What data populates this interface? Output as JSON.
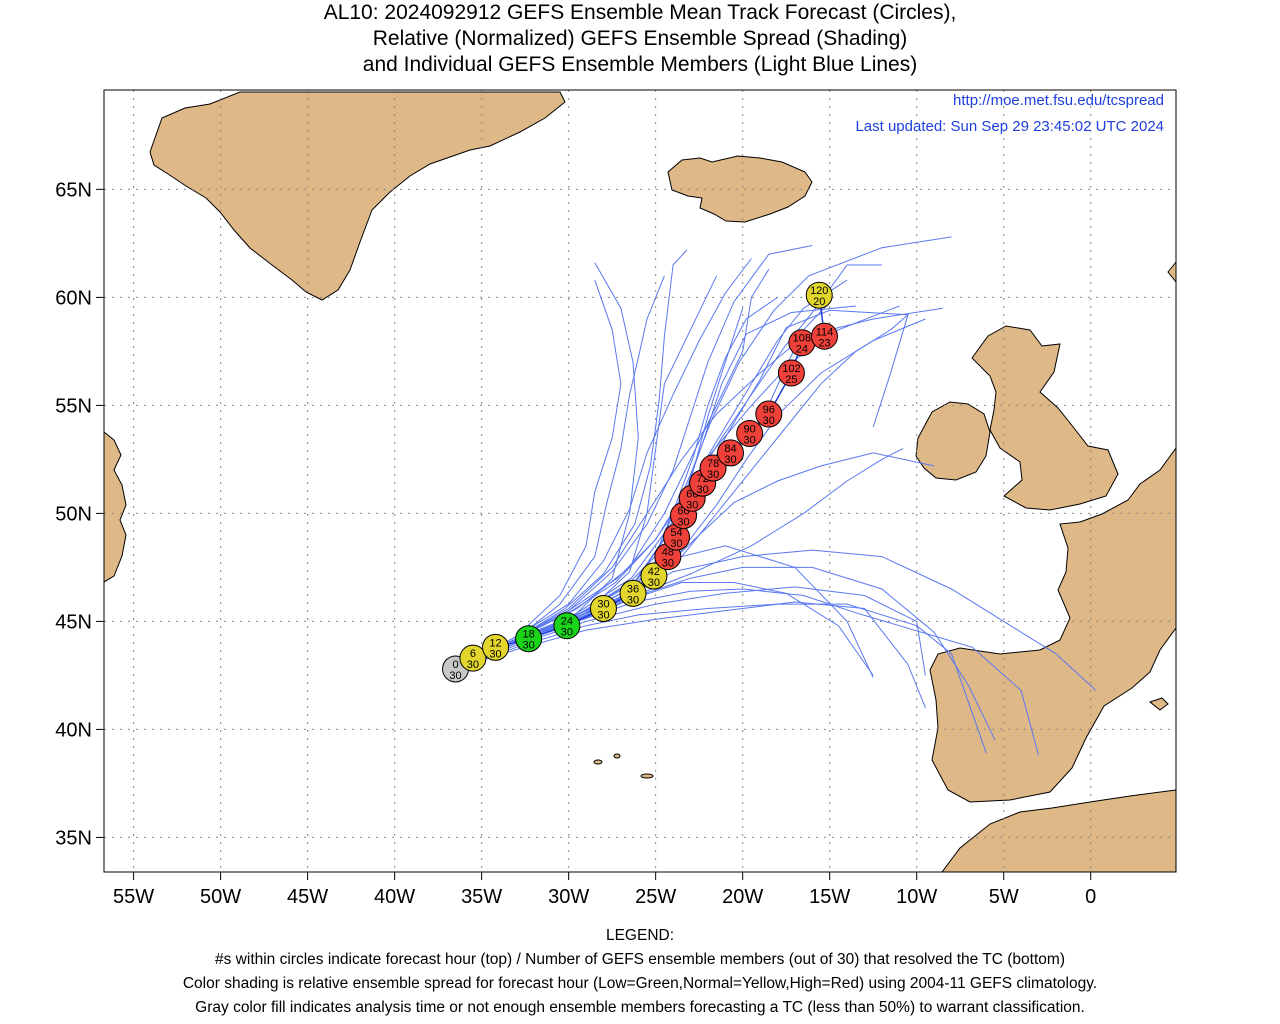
{
  "title": {
    "line1": "AL10: 2024092912 GEFS Ensemble Mean Track Forecast (Circles),",
    "line2": "Relative (Normalized) GEFS Ensemble Spread (Shading)",
    "line3": "and Individual GEFS Ensemble Members (Light Blue Lines)"
  },
  "credit": {
    "url": "http://moe.met.fsu.edu/tcspread",
    "updated": "Last updated: Sun Sep 29 23:45:02 UTC 2024"
  },
  "axes": {
    "lon_ticks": [
      {
        "lon": -55,
        "label": "55W"
      },
      {
        "lon": -50,
        "label": "50W"
      },
      {
        "lon": -45,
        "label": "45W"
      },
      {
        "lon": -40,
        "label": "40W"
      },
      {
        "lon": -35,
        "label": "35W"
      },
      {
        "lon": -30,
        "label": "30W"
      },
      {
        "lon": -25,
        "label": "25W"
      },
      {
        "lon": -20,
        "label": "20W"
      },
      {
        "lon": -15,
        "label": "15W"
      },
      {
        "lon": -10,
        "label": "10W"
      },
      {
        "lon": -5,
        "label": "5W"
      },
      {
        "lon": 0,
        "label": "0"
      }
    ],
    "lat_ticks": [
      {
        "lat": 35,
        "label": "35N"
      },
      {
        "lat": 40,
        "label": "40N"
      },
      {
        "lat": 45,
        "label": "45N"
      },
      {
        "lat": 50,
        "label": "50N"
      },
      {
        "lat": 55,
        "label": "55N"
      },
      {
        "lat": 60,
        "label": "60N"
      },
      {
        "lat": 65,
        "label": "65N"
      }
    ],
    "lon_range": [
      -56.7,
      4.9
    ],
    "lat_range": [
      33.4,
      69.6
    ],
    "grid": true
  },
  "colors": {
    "land": "#deb887",
    "ocean": "#ffffff",
    "member_lines": "#5a78f0",
    "mean_track": "#1f3fdc",
    "low": "#19d419",
    "normal": "#e2d62c",
    "high": "#f0403a",
    "gray": "#c8c8c8",
    "credit_text": "#1f3fdc"
  },
  "track": [
    {
      "hour": "0",
      "members": "30",
      "lon": -36.5,
      "lat": 42.8,
      "spread": "gray"
    },
    {
      "hour": "6",
      "members": "30",
      "lon": -35.5,
      "lat": 43.3,
      "spread": "normal"
    },
    {
      "hour": "12",
      "members": "30",
      "lon": -34.2,
      "lat": 43.8,
      "spread": "normal"
    },
    {
      "hour": "18",
      "members": "30",
      "lon": -32.3,
      "lat": 44.2,
      "spread": "low"
    },
    {
      "hour": "24",
      "members": "30",
      "lon": -30.1,
      "lat": 44.8,
      "spread": "low"
    },
    {
      "hour": "30",
      "members": "30",
      "lon": -28.0,
      "lat": 45.6,
      "spread": "normal"
    },
    {
      "hour": "36",
      "members": "30",
      "lon": -26.3,
      "lat": 46.3,
      "spread": "normal"
    },
    {
      "hour": "42",
      "members": "30",
      "lon": -25.1,
      "lat": 47.1,
      "spread": "normal"
    },
    {
      "hour": "48",
      "members": "30",
      "lon": -24.3,
      "lat": 48.0,
      "spread": "high"
    },
    {
      "hour": "54",
      "members": "30",
      "lon": -23.8,
      "lat": 48.9,
      "spread": "high"
    },
    {
      "hour": "60",
      "members": "30",
      "lon": -23.4,
      "lat": 49.9,
      "spread": "high"
    },
    {
      "hour": "66",
      "members": "30",
      "lon": -22.9,
      "lat": 50.7,
      "spread": "high"
    },
    {
      "hour": "72",
      "members": "30",
      "lon": -22.3,
      "lat": 51.4,
      "spread": "high"
    },
    {
      "hour": "78",
      "members": "30",
      "lon": -21.7,
      "lat": 52.1,
      "spread": "high"
    },
    {
      "hour": "84",
      "members": "30",
      "lon": -20.7,
      "lat": 52.8,
      "spread": "high"
    },
    {
      "hour": "90",
      "members": "30",
      "lon": -19.6,
      "lat": 53.7,
      "spread": "high"
    },
    {
      "hour": "96",
      "members": "30",
      "lon": -18.5,
      "lat": 54.6,
      "spread": "high"
    },
    {
      "hour": "102",
      "members": "25",
      "lon": -17.2,
      "lat": 56.5,
      "spread": "high"
    },
    {
      "hour": "108",
      "members": "24",
      "lon": -16.6,
      "lat": 57.9,
      "spread": "high"
    },
    {
      "hour": "114",
      "members": "23",
      "lon": -15.3,
      "lat": 58.2,
      "spread": "high"
    },
    {
      "hour": "120",
      "members": "20",
      "lon": -15.6,
      "lat": 60.1,
      "spread": "normal"
    }
  ],
  "legend": {
    "heading": "LEGEND:",
    "line1": "#s within circles indicate forecast hour (top) / Number of GEFS ensemble members (out of 30) that resolved the TC (bottom)",
    "line2": "Color shading is relative ensemble spread for forecast hour (Low=Green,Normal=Yellow,High=Red) using 2004-11 GEFS climatology.",
    "line3": "Gray color fill indicates analysis time or not enough ensemble members forecasting a TC (less than 50%) to warrant classification."
  }
}
